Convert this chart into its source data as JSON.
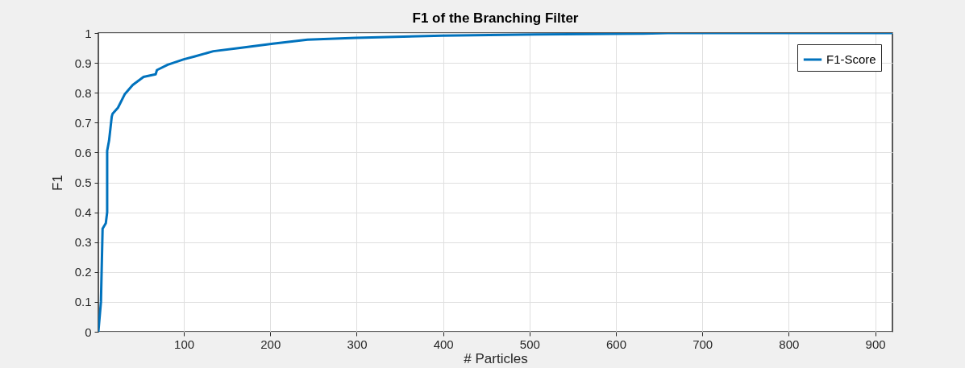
{
  "chart_data": {
    "type": "line",
    "title": "F1 of the Branching Filter",
    "xlabel": "# Particles",
    "ylabel": "F1",
    "x": [
      1,
      4,
      5.9,
      9.6,
      11.2,
      11.2,
      13.4,
      16.5,
      17.5,
      23.7,
      31.5,
      40.8,
      53.3,
      67.3,
      68.8,
      81.3,
      100,
      112,
      134,
      165,
      203,
      243,
      299,
      399,
      508,
      632,
      660,
      920
    ],
    "series": [
      {
        "name": "F1-Score",
        "color": "#0072bd",
        "values": [
          0,
          0.1,
          0.345,
          0.363,
          0.4,
          0.606,
          0.64,
          0.72,
          0.73,
          0.75,
          0.795,
          0.826,
          0.853,
          0.862,
          0.876,
          0.894,
          0.912,
          0.921,
          0.939,
          0.95,
          0.964,
          0.978,
          0.984,
          0.991,
          0.995,
          0.998,
          1,
          1
        ]
      }
    ],
    "xlim": [
      1,
      920
    ],
    "xticks": [
      100,
      200,
      300,
      400,
      500,
      600,
      700,
      800,
      900
    ],
    "ylim": [
      0,
      1
    ],
    "yticks": [
      0,
      0.1,
      0.2,
      0.3,
      0.4,
      0.5,
      0.6,
      0.7,
      0.8,
      0.9,
      1
    ],
    "grid": true,
    "legend": "top right",
    "line_style": "solid",
    "marker": "none"
  }
}
